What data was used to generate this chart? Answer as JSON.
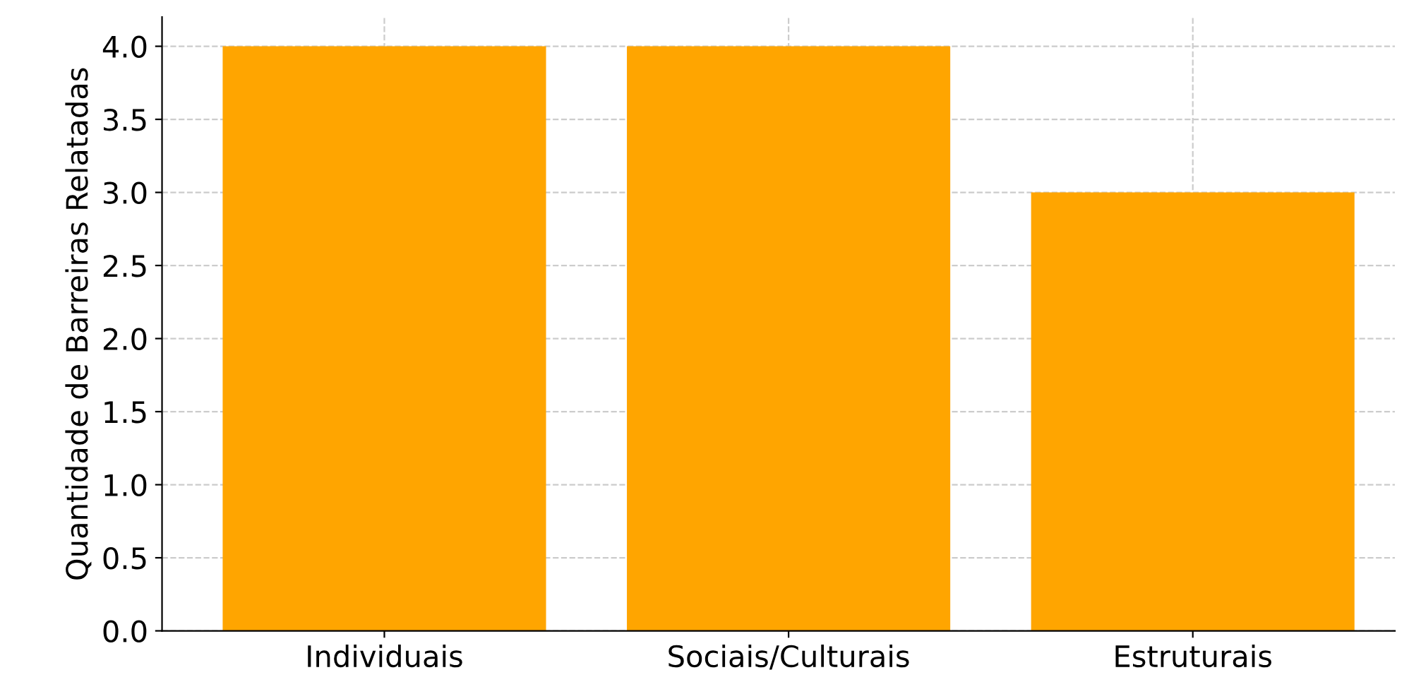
{
  "chart_data": {
    "type": "bar",
    "ylabel": "Quantidade de Barreiras Relatadas",
    "categories": [
      "Individuais",
      "Sociais/Culturais",
      "Estruturais"
    ],
    "values": [
      4,
      4,
      3
    ],
    "color": "#ffa500",
    "ylim": [
      0,
      4.2
    ],
    "yticks": [
      {
        "value": 0,
        "label": "0.0"
      },
      {
        "value": 0.5,
        "label": "0.5"
      },
      {
        "value": 1,
        "label": "1.0"
      },
      {
        "value": 1.5,
        "label": "1.5"
      },
      {
        "value": 2,
        "label": "2.0"
      },
      {
        "value": 2.5,
        "label": "2.5"
      },
      {
        "value": 3,
        "label": "3.0"
      },
      {
        "value": 3.5,
        "label": "3.5"
      },
      {
        "value": 4,
        "label": "4.0"
      }
    ],
    "grid": true,
    "line_style": "dashed"
  }
}
